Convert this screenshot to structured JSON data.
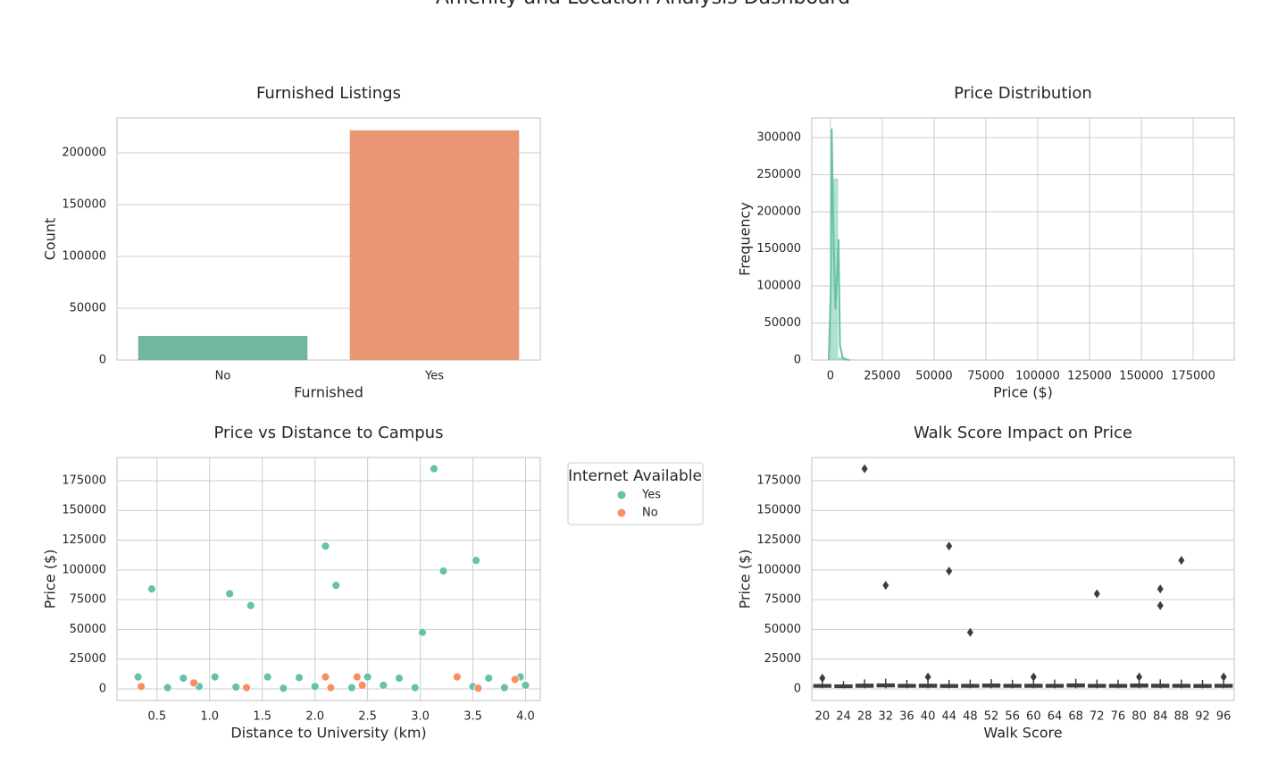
{
  "title": "Amenity and Location Analysis Dashboard",
  "chart_data": [
    {
      "type": "bar",
      "title": "Furnished Listings",
      "xlabel": "Furnished",
      "ylabel": "Count",
      "categories": [
        "No",
        "Yes"
      ],
      "values": [
        23300,
        221600
      ],
      "colors": [
        "#72b6a1",
        "#e99675"
      ],
      "ylim": [
        0,
        233600
      ],
      "yticks": [
        0,
        50000,
        100000,
        150000,
        200000
      ],
      "grid": "y"
    },
    {
      "type": "histogram",
      "title": "Price Distribution",
      "xlabel": "Price ($)",
      "ylabel": "Frequency",
      "bins": [
        0,
        3720,
        7440,
        11160,
        14880
      ],
      "counts": [
        245000,
        4000,
        800,
        200
      ],
      "color": "#66c2a5",
      "kde": {
        "x": [
          -800,
          200,
          600,
          1400,
          2400,
          3300,
          3900,
          4600,
          6000,
          9000
        ],
        "values": [
          0,
          100000,
          312000,
          180000,
          68000,
          120000,
          163000,
          20000,
          2000,
          0
        ]
      },
      "xlim": [
        -9000,
        194800
      ],
      "xticks": [
        0,
        25000,
        50000,
        75000,
        100000,
        125000,
        150000,
        175000
      ],
      "ylim": [
        0,
        326500
      ],
      "yticks": [
        0,
        50000,
        100000,
        150000,
        200000,
        250000,
        300000
      ],
      "grid": "both"
    },
    {
      "type": "scatter",
      "title": "Price vs Distance to Campus",
      "xlabel": "Distance to University (km)",
      "ylabel": "Price ($)",
      "legend_title": "Internet Available",
      "legend": "outside upper right",
      "series": [
        {
          "name": "Yes",
          "color": "#66c2a5",
          "x": [
            0.32,
            0.45,
            0.6,
            0.75,
            0.9,
            1.05,
            1.19,
            1.25,
            1.39,
            1.55,
            1.7,
            1.85,
            2.0,
            2.1,
            2.2,
            2.35,
            2.5,
            2.65,
            2.8,
            2.95,
            3.02,
            3.13,
            3.22,
            3.35,
            3.5,
            3.53,
            3.65,
            3.8,
            3.95,
            4.0
          ],
          "values": [
            10000,
            84000,
            1000,
            9000,
            2000,
            10000,
            80000,
            1500,
            70000,
            10000,
            500,
            9500,
            2000,
            120000,
            87000,
            1000,
            10000,
            3000,
            9000,
            1000,
            47500,
            185000,
            99000,
            10000,
            2000,
            108000,
            9000,
            1000,
            10000,
            3000
          ]
        },
        {
          "name": "No",
          "color": "#fc8d62",
          "x": [
            0.35,
            0.85,
            1.35,
            2.1,
            2.15,
            2.4,
            2.45,
            3.35,
            3.55,
            3.9
          ],
          "values": [
            2000,
            5000,
            1000,
            10000,
            1000,
            10000,
            3000,
            10000,
            500,
            8000
          ]
        }
      ],
      "xlim": [
        0.12,
        4.14
      ],
      "xticks": [
        0.5,
        {
          "value": 1,
          "label": "1.0"
        },
        1.5,
        {
          "value": 2,
          "label": "2.0"
        },
        2.5,
        {
          "value": 3,
          "label": "3.0"
        },
        3.5,
        {
          "value": 4,
          "label": "4.0"
        }
      ],
      "ylim": [
        -9800,
        194500
      ],
      "yticks": [
        0,
        25000,
        50000,
        75000,
        100000,
        125000,
        150000,
        175000
      ],
      "grid": "both"
    },
    {
      "type": "box",
      "title": "Walk Score Impact on Price",
      "xlabel": "Walk Score",
      "ylabel": "Price ($)",
      "categories": [
        "20",
        "24",
        "28",
        "32",
        "36",
        "40",
        "44",
        "48",
        "52",
        "56",
        "60",
        "64",
        "68",
        "72",
        "76",
        "80",
        "84",
        "88",
        "92",
        "96"
      ],
      "whislo": [
        500,
        500,
        500,
        500,
        500,
        500,
        500,
        500,
        500,
        500,
        500,
        500,
        500,
        500,
        500,
        500,
        500,
        500,
        500,
        500
      ],
      "q1": [
        1500,
        1200,
        1500,
        1800,
        1500,
        1500,
        1400,
        1500,
        1600,
        1500,
        1500,
        1500,
        1700,
        1500,
        1500,
        1600,
        1500,
        1500,
        1400,
        1500
      ],
      "median": [
        2500,
        2200,
        2600,
        2800,
        2500,
        2600,
        2400,
        2500,
        2700,
        2500,
        2600,
        2500,
        2800,
        2500,
        2500,
        2700,
        2600,
        2500,
        2400,
        2500
      ],
      "q3": [
        3500,
        3200,
        3800,
        4000,
        3600,
        3700,
        3500,
        3600,
        3900,
        3600,
        3700,
        3600,
        4000,
        3600,
        3600,
        3900,
        3700,
        3600,
        3500,
        3600
      ],
      "whishi": [
        7000,
        6500,
        8000,
        8500,
        7500,
        8000,
        7500,
        7800,
        8200,
        7600,
        8000,
        7800,
        8500,
        7800,
        7700,
        8200,
        8000,
        7800,
        7500,
        7800
      ],
      "outliers": {
        "x": [
          "20",
          "28",
          "32",
          "40",
          "44",
          "44",
          "48",
          "60",
          "72",
          "80",
          "84",
          "84",
          "88",
          "96"
        ],
        "values": [
          9000,
          185000,
          87000,
          10000,
          120000,
          99000,
          47500,
          10000,
          80000,
          10000,
          84000,
          70000,
          108000,
          10000
        ]
      },
      "color": "#555555",
      "ylim": [
        -9800,
        194500
      ],
      "yticks": [
        0,
        25000,
        50000,
        75000,
        100000,
        125000,
        150000,
        175000
      ],
      "grid": "y"
    }
  ]
}
